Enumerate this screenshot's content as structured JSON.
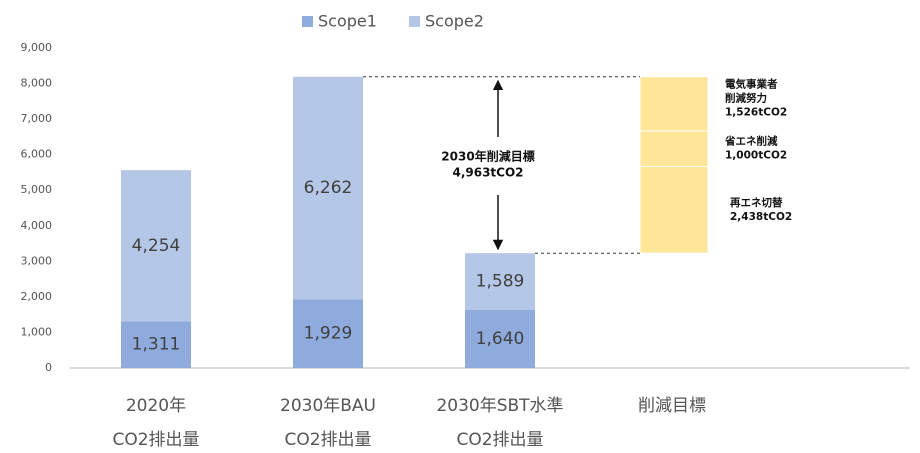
{
  "chart_data": {
    "type": "stacked_bar",
    "categories": [
      [
        "2020年",
        "CO2排出量"
      ],
      [
        "2030年BAU",
        "CO2排出量"
      ],
      [
        "2030年SBT水準",
        "CO2排出量"
      ],
      [
        "削減目標"
      ]
    ],
    "series": [
      {
        "name": "Scope1",
        "color": "#8faadc",
        "values": [
          1311,
          1929,
          1640,
          null
        ],
        "value_labels": [
          "1,311",
          "1,929",
          "1,640",
          null
        ]
      },
      {
        "name": "Scope2",
        "color": "#b4c7e7",
        "values": [
          4254,
          6262,
          1589,
          null
        ],
        "value_labels": [
          "4,254",
          "6,262",
          "1,589",
          null
        ]
      }
    ],
    "reductions": {
      "color": "#ffe699",
      "segments": [
        {
          "name": [
            "再エネ切替"
          ],
          "value": 2438,
          "value_label": "2,438tCO2"
        },
        {
          "name": [
            "省エネ削減"
          ],
          "value": 1000,
          "value_label": "1,000tCO2"
        },
        {
          "name": [
            "電気事業者",
            "削減努力"
          ],
          "value": 1526,
          "value_label": "1,526tCO2"
        }
      ]
    },
    "annotation": [
      "2030年削減目標",
      "4,963tCO2"
    ],
    "ylim": [
      0,
      9000
    ],
    "yticks": [
      0,
      {
        "value": 1000,
        "label": "1,000"
      },
      {
        "value": 2000,
        "label": "2,000"
      },
      {
        "value": 3000,
        "label": "3,000"
      },
      {
        "value": 4000,
        "label": "4,000"
      },
      {
        "value": 5000,
        "label": "5,000"
      },
      {
        "value": 6000,
        "label": "6,000"
      },
      {
        "value": 7000,
        "label": "7,000"
      },
      {
        "value": 8000,
        "label": "8,000"
      },
      {
        "value": 9000,
        "label": "9,000"
      }
    ],
    "legend": "top"
  }
}
